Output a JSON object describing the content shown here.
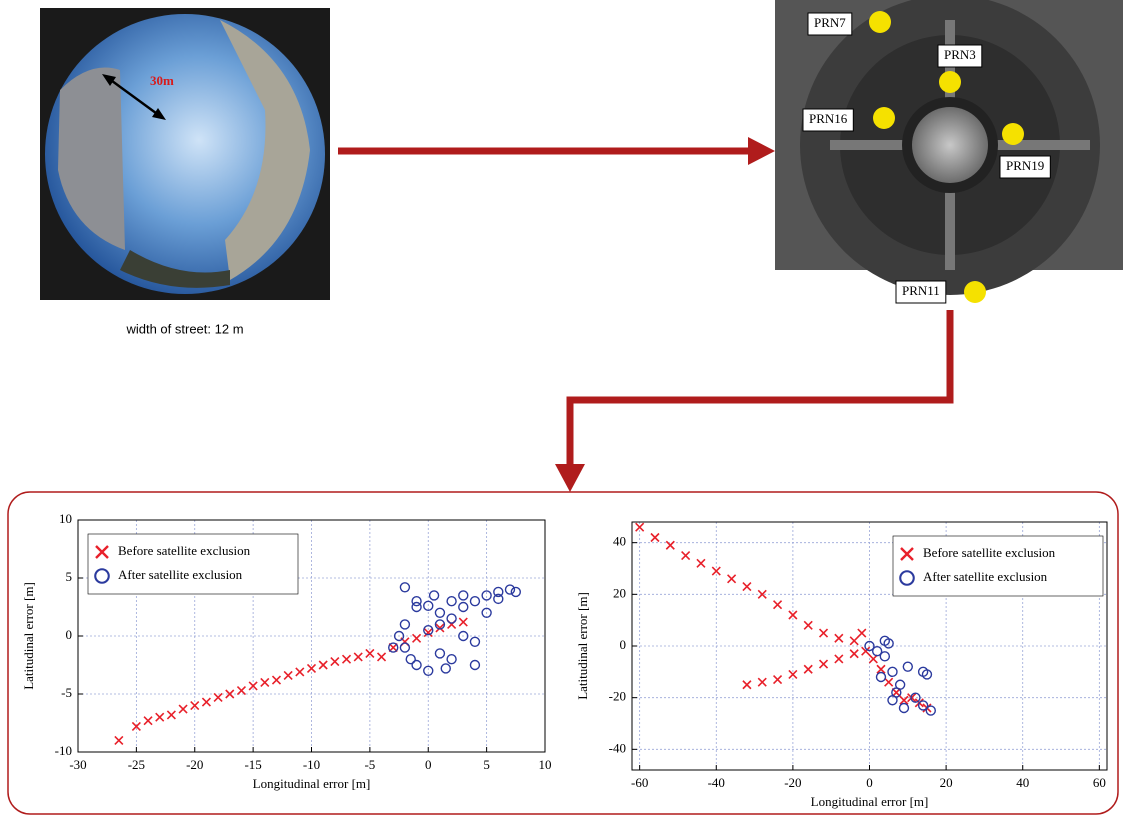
{
  "photo_left": {
    "annotation": "30m",
    "caption": "width of street: 12 m"
  },
  "photo_right": {
    "labels": [
      "PRN7",
      "PRN3",
      "PRN16",
      "PRN19",
      "PRN11"
    ]
  },
  "chart_data": [
    {
      "type": "scatter",
      "xlabel": "Longitudinal error [m]",
      "ylabel": "Latitudinal error [m]",
      "xlim": [
        -30,
        10
      ],
      "ylim": [
        -10,
        10
      ],
      "xticks": [
        -30,
        -25,
        -20,
        -15,
        -10,
        -5,
        0,
        5,
        10
      ],
      "yticks": [
        -10,
        -5,
        0,
        5,
        10
      ],
      "grid": true,
      "legend": "upper left",
      "series": [
        {
          "name": "Before satellite exclusion",
          "color": "#e8202a",
          "marker": "x",
          "x": [
            -26.5,
            -25,
            -24,
            -23,
            -22,
            -21,
            -20,
            -19,
            -18,
            -17,
            -16,
            -15,
            -14,
            -13,
            -12,
            -11,
            -10,
            -9,
            -8,
            -7,
            -6,
            -5,
            -4,
            -3,
            -2,
            -1,
            0,
            1,
            2,
            3
          ],
          "values": [
            -9,
            -7.8,
            -7.3,
            -7,
            -6.8,
            -6.3,
            -6,
            -5.7,
            -5.3,
            -5,
            -4.7,
            -4.3,
            -4,
            -3.8,
            -3.4,
            -3.1,
            -2.8,
            -2.5,
            -2.2,
            -2,
            -1.8,
            -1.5,
            -1.8,
            -1,
            -0.5,
            -0.2,
            0.3,
            0.7,
            1,
            1.2
          ]
        },
        {
          "name": "After satellite exclusion",
          "color": "#2b3a9e",
          "marker": "o",
          "x": [
            -3,
            -2.5,
            -2,
            -1.5,
            -1,
            0,
            0.5,
            1,
            1.5,
            2,
            3,
            4,
            5,
            6,
            7,
            7.5,
            -2,
            -1,
            0,
            1,
            2,
            3,
            4,
            5,
            6,
            -2,
            0,
            2,
            4,
            1,
            3,
            -1
          ],
          "values": [
            -1,
            0,
            1,
            -2,
            -2.5,
            -3,
            3.5,
            2,
            -2.8,
            3,
            2.5,
            3,
            3.5,
            3.8,
            4,
            3.8,
            4.2,
            3,
            2.6,
            -1.5,
            -2,
            3.5,
            -2.5,
            2,
            3.2,
            -1,
            0.5,
            1.5,
            -0.5,
            1,
            0,
            2.5
          ]
        }
      ]
    },
    {
      "type": "scatter",
      "xlabel": "Longitudinal error [m]",
      "ylabel": "Latitudinal error [m]",
      "xlim": [
        -62,
        62
      ],
      "ylim": [
        -48,
        48
      ],
      "xticks": [
        -60,
        -40,
        -20,
        0,
        20,
        40,
        60
      ],
      "yticks": [
        -40,
        -20,
        0,
        20,
        40
      ],
      "grid": true,
      "legend": "upper right",
      "series": [
        {
          "name": "Before satellite exclusion",
          "color": "#e8202a",
          "marker": "x",
          "x": [
            -60,
            -56,
            -52,
            -48,
            -44,
            -40,
            -36,
            -32,
            -28,
            -24,
            -20,
            -16,
            -12,
            -8,
            -4,
            -2,
            -32,
            -28,
            -24,
            -20,
            -16,
            -12,
            -8,
            -4,
            -1,
            1,
            3,
            5,
            7,
            9,
            11,
            13,
            15
          ],
          "values": [
            46,
            42,
            39,
            35,
            32,
            29,
            26,
            23,
            20,
            16,
            12,
            8,
            5,
            3,
            2,
            5,
            -15,
            -14,
            -13,
            -11,
            -9,
            -7,
            -5,
            -3,
            -2,
            -5,
            -9,
            -14,
            -18,
            -21,
            -20,
            -22,
            -24
          ]
        },
        {
          "name": "After satellite exclusion",
          "color": "#2b3a9e",
          "marker": "o",
          "x": [
            0,
            2,
            4,
            5,
            6,
            8,
            10,
            14,
            15,
            12,
            14,
            16,
            7,
            9,
            6,
            3,
            4
          ],
          "values": [
            0,
            -2,
            -4,
            1,
            -10,
            -15,
            -8,
            -10,
            -11,
            -20,
            -23,
            -25,
            -18,
            -24,
            -21,
            -12,
            2
          ]
        }
      ]
    }
  ]
}
